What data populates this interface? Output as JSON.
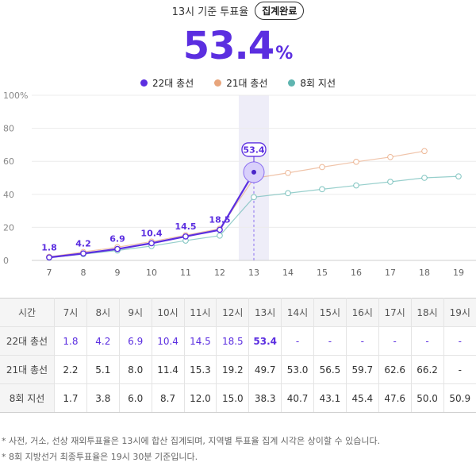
{
  "header": {
    "text": "13시 기준 투표율",
    "badge": "집계완료"
  },
  "headline": {
    "value": "53.4",
    "unit": "%"
  },
  "legend": [
    {
      "name": "22대 총선",
      "color": "#5b2ee0"
    },
    {
      "name": "21대 총선",
      "color": "#e8a57c"
    },
    {
      "name": "8회 지선",
      "color": "#5fb5b0"
    }
  ],
  "chart_data": {
    "type": "line",
    "x": [
      7,
      8,
      9,
      10,
      11,
      12,
      13,
      14,
      15,
      16,
      17,
      18,
      19
    ],
    "y_ticks": [
      "0",
      "20",
      "40",
      "60",
      "80",
      "100%"
    ],
    "ylim": [
      0,
      100
    ],
    "highlight_x": 13,
    "highlight_label": "53.4",
    "grid": true,
    "legend_position": "top-center",
    "series": [
      {
        "name": "22대 총선",
        "color": "#5b2ee0",
        "values": [
          1.8,
          4.2,
          6.9,
          10.4,
          14.5,
          18.5,
          53.4,
          null,
          null,
          null,
          null,
          null,
          null
        ],
        "labels": [
          "1.8",
          "4.2",
          "6.9",
          "10.4",
          "14.5",
          "18.5"
        ]
      },
      {
        "name": "21대 총선",
        "color": "#e8a57c",
        "values": [
          2.2,
          5.1,
          8.0,
          11.4,
          15.3,
          19.2,
          49.7,
          53.0,
          56.5,
          59.7,
          62.6,
          66.2,
          null
        ]
      },
      {
        "name": "8회 지선",
        "color": "#5fb5b0",
        "values": [
          1.7,
          3.8,
          6.0,
          8.7,
          12.0,
          15.0,
          38.3,
          40.7,
          43.1,
          45.4,
          47.6,
          50.0,
          50.9
        ]
      }
    ]
  },
  "table": {
    "header_label": "시간",
    "hours": [
      "7시",
      "8시",
      "9시",
      "10시",
      "11시",
      "12시",
      "13시",
      "14시",
      "15시",
      "16시",
      "17시",
      "18시",
      "19시"
    ],
    "rows": [
      {
        "label": "22대 총선",
        "values": [
          "1.8",
          "4.2",
          "6.9",
          "10.4",
          "14.5",
          "18.5",
          "53.4",
          "-",
          "-",
          "-",
          "-",
          "-",
          "-"
        ]
      },
      {
        "label": "21대 총선",
        "values": [
          "2.2",
          "5.1",
          "8.0",
          "11.4",
          "15.3",
          "19.2",
          "49.7",
          "53.0",
          "56.5",
          "59.7",
          "62.6",
          "66.2",
          "-"
        ]
      },
      {
        "label": "8회 지선",
        "values": [
          "1.7",
          "3.8",
          "6.0",
          "8.7",
          "12.0",
          "15.0",
          "38.3",
          "40.7",
          "43.1",
          "45.4",
          "47.6",
          "50.0",
          "50.9"
        ]
      }
    ]
  },
  "notes": [
    "* 사전, 거소, 선상 재외투표율은 13시에 합산 집계되며, 지역별 투표율 집계 시각은 상이할 수 있습니다.",
    "* 8회 지방선거 최종투표율은 19시 30분 기준입니다."
  ]
}
